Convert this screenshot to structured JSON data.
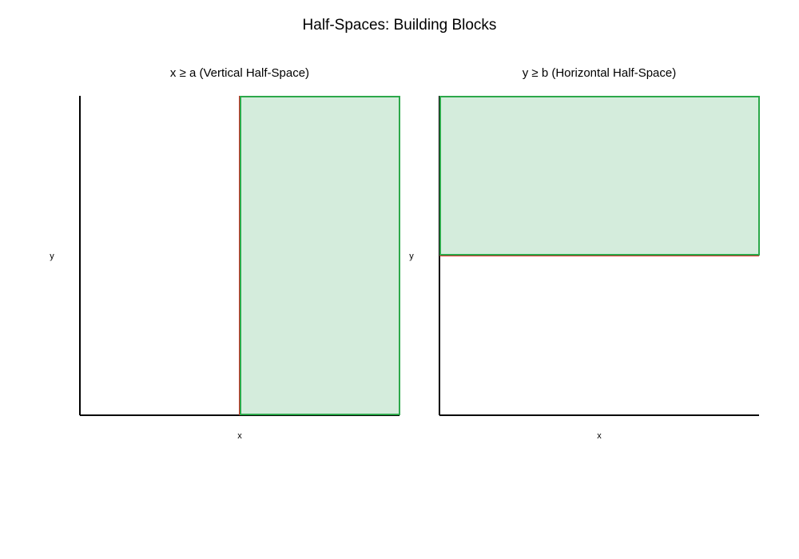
{
  "chart_data": {
    "title": "Half-Spaces: Building Blocks",
    "panels": [
      {
        "type": "area",
        "title": "x ≥ a (Vertical Half-Space)",
        "xlabel": "x",
        "ylabel": "y",
        "xlim": [
          0,
          1
        ],
        "ylim": [
          0,
          1
        ],
        "grid": false,
        "ticks": false,
        "boundary": {
          "orientation": "vertical",
          "value": 0.5,
          "color": "#d62728"
        },
        "region": {
          "x": [
            0.5,
            1
          ],
          "y": [
            0,
            1
          ],
          "fill": "#d4ecdc",
          "edge": "#2ca84a"
        }
      },
      {
        "type": "area",
        "title": "y ≥ b (Horizontal Half-Space)",
        "xlabel": "x",
        "ylabel": "y",
        "xlim": [
          0,
          1
        ],
        "ylim": [
          0,
          1
        ],
        "grid": false,
        "ticks": false,
        "boundary": {
          "orientation": "horizontal",
          "value": 0.5,
          "color": "#d62728"
        },
        "region": {
          "x": [
            0,
            1
          ],
          "y": [
            0.5,
            1
          ],
          "fill": "#d4ecdc",
          "edge": "#2ca84a"
        }
      }
    ]
  }
}
